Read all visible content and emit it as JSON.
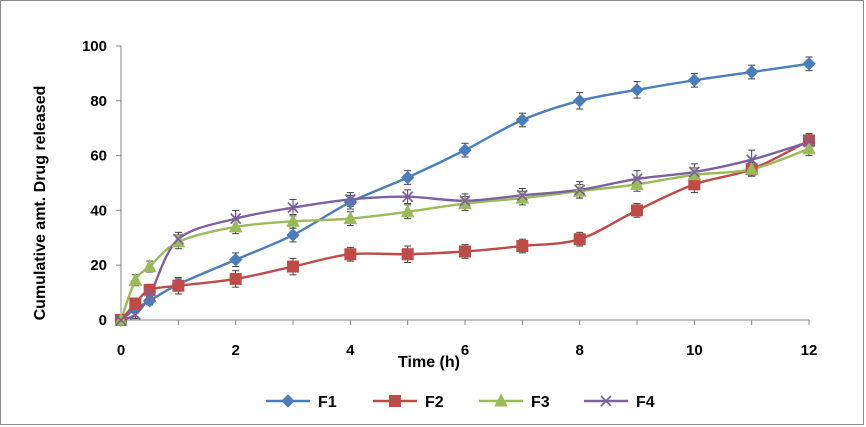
{
  "chart_data": {
    "type": "line",
    "title": "",
    "xlabel": "Time (h)",
    "ylabel": "Cumulative amt. Drug released",
    "xlim": [
      0,
      12
    ],
    "ylim": [
      0,
      100
    ],
    "x_ticks": [
      "0",
      "2",
      "4",
      "6",
      "8",
      "10",
      "12"
    ],
    "y_ticks": [
      "0",
      "20",
      "40",
      "60",
      "80",
      "100"
    ],
    "grid": false,
    "legend_position": "bottom",
    "error_bars": true,
    "x": [
      0,
      0.25,
      0.5,
      1,
      2,
      3,
      4,
      5,
      6,
      7,
      8,
      9,
      10,
      11,
      12
    ],
    "series": [
      {
        "name": "F1",
        "color": "#4a7ebb",
        "marker": "diamond",
        "values": [
          0,
          4,
          7,
          13,
          22,
          31,
          43,
          52,
          62,
          73,
          80,
          84,
          87.5,
          90.5,
          93.5
        ],
        "errors": [
          0,
          1.5,
          1.5,
          2,
          2.5,
          2.5,
          2.5,
          2.5,
          2.5,
          2.5,
          3,
          3,
          2.5,
          2.5,
          2.5
        ]
      },
      {
        "name": "F2",
        "color": "#be4b48",
        "marker": "square",
        "values": [
          0,
          6,
          11,
          12.5,
          15,
          19.5,
          24,
          24,
          25,
          27,
          29.5,
          40,
          49.5,
          55,
          65.5
        ],
        "errors": [
          0,
          2,
          2,
          3,
          3,
          3,
          2.5,
          3,
          2.5,
          2.5,
          2.5,
          2.5,
          3,
          2.5,
          2.5
        ]
      },
      {
        "name": "F3",
        "color": "#9bbb59",
        "marker": "triangle",
        "values": [
          0,
          14.5,
          19.5,
          28.5,
          34,
          36,
          37,
          39.5,
          42.5,
          44.5,
          47,
          49.5,
          53,
          55,
          62.5
        ],
        "errors": [
          0,
          2,
          2,
          2.5,
          2.5,
          2.5,
          2.5,
          2.5,
          2.5,
          2.5,
          2.5,
          2.5,
          2.5,
          2.5,
          2.5
        ]
      },
      {
        "name": "F4",
        "color": "#7d60a0",
        "marker": "x",
        "values": [
          0,
          2,
          9,
          29.5,
          37,
          41,
          44,
          45,
          43.5,
          45.5,
          47.5,
          51.5,
          54,
          58.5,
          65
        ],
        "errors": [
          0,
          1.5,
          1.5,
          2.5,
          3,
          3,
          2.5,
          2.5,
          2.5,
          2.5,
          3,
          3,
          3,
          3.5,
          3
        ]
      }
    ]
  }
}
